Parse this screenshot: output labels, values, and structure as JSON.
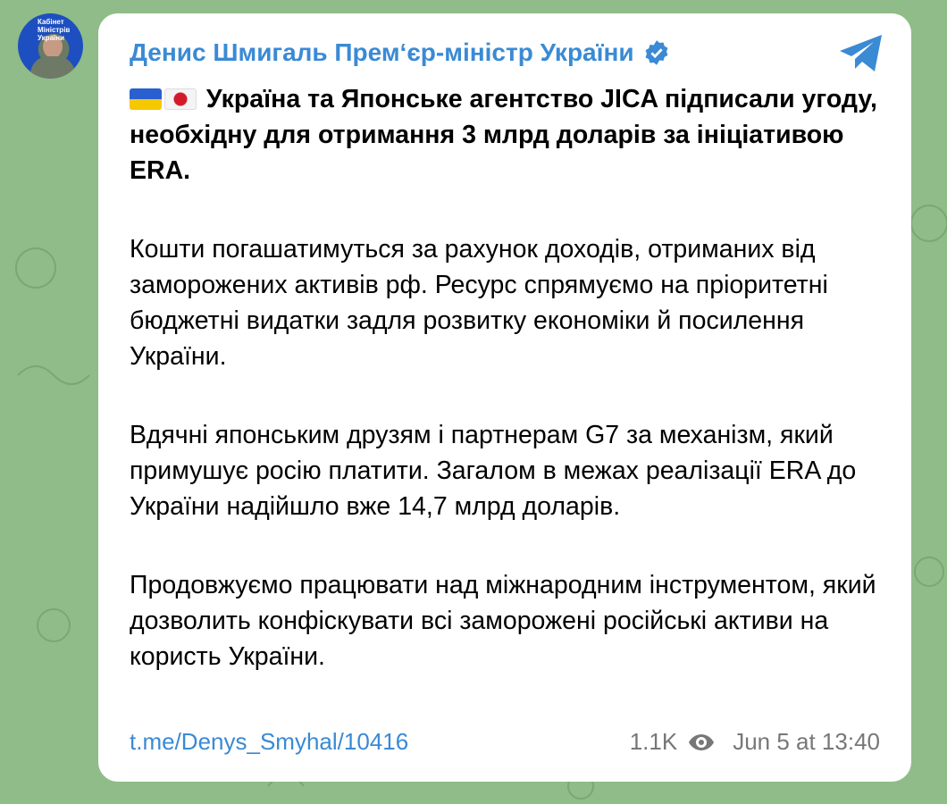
{
  "post": {
    "author": "Денис Шмигаль Прем‘єр-міністр України",
    "avatar_text": "Кабінет Міністрів України",
    "flags": [
      "ukraine-flag",
      "japan-flag"
    ],
    "paragraphs": [
      "Україна та Японське агентство JICA підписали угоду, необхідну для отримання 3 млрд доларів за ініціативою ERA.",
      "Кошти погашатимуться за рахунок доходів, отриманих від заморожених активів рф. Ресурс спрямуємо на пріоритетні бюджетні видатки задля розвитку економіки й посилення України.",
      "Вдячні японським друзям і партнерам G7 за механізм, який примушує росію платити. Загалом в межах реалізації ERA до України надійшло вже 14,7 млрд доларів.",
      "Продовжуємо працювати над міжнародним інструментом, який дозволить конфіскувати всі заморожені російські активи на користь України."
    ],
    "link": "t.me/Denys_Smyhal/10416",
    "views": "1.1K",
    "date": "Jun 5 at 13:40"
  },
  "colors": {
    "accent": "#3a8ad4",
    "background": "#8fbc88",
    "meta": "#777777"
  },
  "icons": {
    "verified": "verified-badge-icon",
    "share": "telegram-icon",
    "views": "eye-icon"
  }
}
